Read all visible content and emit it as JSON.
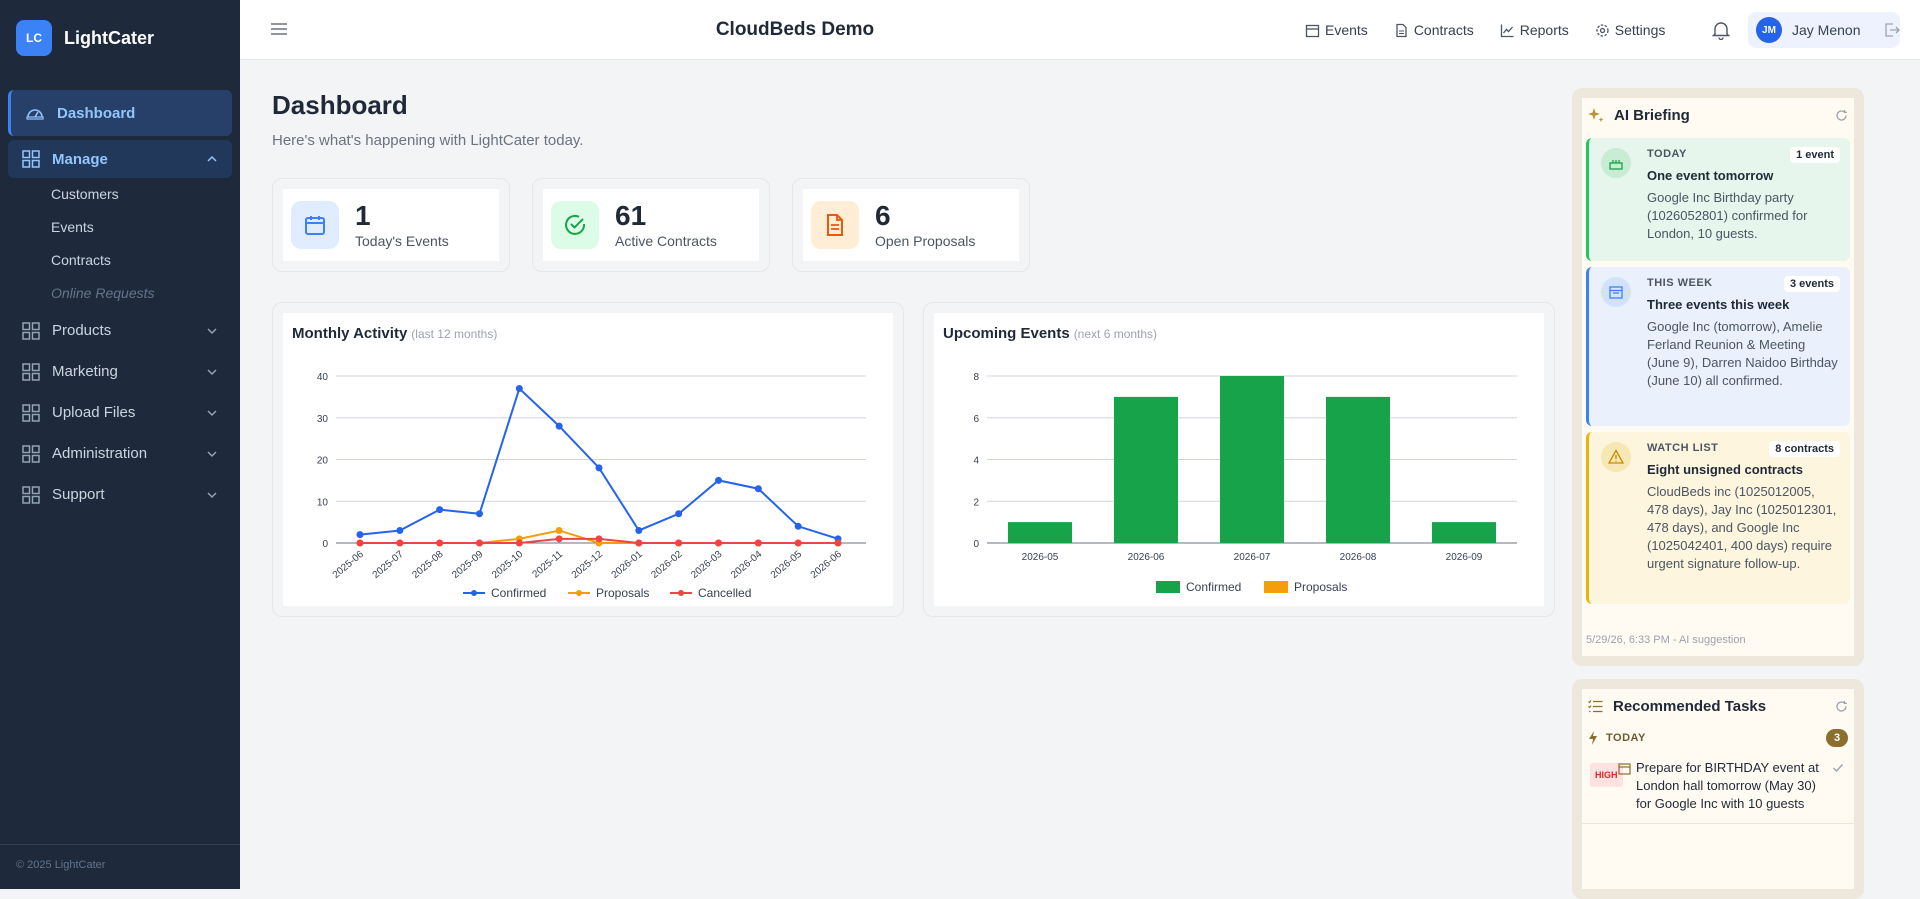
{
  "brand": {
    "logo": "LC",
    "name": "LightCater"
  },
  "sidebar": {
    "items": [
      {
        "label": "Dashboard",
        "icon": "dashboard-icon"
      },
      {
        "label": "Manage",
        "icon": "grid-icon"
      },
      {
        "label": "Products",
        "icon": "grid-icon"
      },
      {
        "label": "Marketing",
        "icon": "grid-icon"
      },
      {
        "label": "Upload Files",
        "icon": "grid-icon"
      },
      {
        "label": "Administration",
        "icon": "grid-icon"
      },
      {
        "label": "Support",
        "icon": "grid-icon"
      }
    ],
    "manage_sub": [
      "Customers",
      "Events",
      "Contracts",
      "Online Requests"
    ],
    "footer": "© 2025 LightCater"
  },
  "topbar": {
    "title": "CloudBeds Demo",
    "links": [
      "Events",
      "Contracts",
      "Reports",
      "Settings"
    ],
    "user": {
      "initials": "JM",
      "name": "Jay Menon"
    }
  },
  "main": {
    "title": "Dashboard",
    "subtitle": "Here's what's happening with LightCater today.",
    "stats": [
      {
        "value": "1",
        "label": "Today's Events",
        "color": "#3b82f6",
        "bg": "#e0ecff"
      },
      {
        "value": "61",
        "label": "Active Contracts",
        "color": "#16a34a",
        "bg": "#dcfce7"
      },
      {
        "value": "6",
        "label": "Open Proposals",
        "color": "#ea580c",
        "bg": "#ffedd5"
      }
    ],
    "monthly": {
      "title": "Monthly Activity",
      "subtitle": "(last 12 months)"
    },
    "upcoming": {
      "title": "Upcoming Events",
      "subtitle": "(next 6 months)"
    }
  },
  "chart_data": [
    {
      "type": "line",
      "title": "Monthly Activity",
      "x": [
        "2025-06",
        "2025-07",
        "2025-08",
        "2025-09",
        "2025-10",
        "2025-11",
        "2025-12",
        "2026-01",
        "2026-02",
        "2026-03",
        "2026-04",
        "2026-05",
        "2026-06"
      ],
      "ylim": [
        0,
        40
      ],
      "yticks": [
        0,
        10,
        20,
        30,
        40
      ],
      "grid": true,
      "legend": "bottom",
      "series": [
        {
          "name": "Confirmed",
          "color": "#2563eb",
          "values": [
            2,
            3,
            8,
            7,
            37,
            28,
            18,
            3,
            7,
            15,
            13,
            4,
            1
          ]
        },
        {
          "name": "Proposals",
          "color": "#f59e0b",
          "values": [
            0,
            0,
            0,
            0,
            1,
            3,
            0,
            0,
            0,
            0,
            0,
            0,
            0
          ]
        },
        {
          "name": "Cancelled",
          "color": "#ef4444",
          "values": [
            0,
            0,
            0,
            0,
            0,
            1,
            1,
            0,
            0,
            0,
            0,
            0,
            0
          ]
        }
      ]
    },
    {
      "type": "bar",
      "title": "Upcoming Events",
      "categories": [
        "2026-05",
        "2026-06",
        "2026-07",
        "2026-08",
        "2026-09"
      ],
      "ylim": [
        0,
        8
      ],
      "yticks": [
        0,
        2,
        4,
        6,
        8
      ],
      "grid": true,
      "legend": "bottom",
      "series": [
        {
          "name": "Confirmed",
          "color": "#16a34a",
          "values": [
            1,
            7,
            8,
            7,
            1
          ]
        },
        {
          "name": "Proposals",
          "color": "#f59e0b",
          "values": [
            0,
            0,
            0,
            0,
            0
          ]
        }
      ]
    }
  ],
  "briefing": {
    "title": "AI Briefing",
    "items": [
      {
        "tag": "TODAY",
        "count": "1 event",
        "heading": "One event tomorrow",
        "body": "Google Inc Birthday party (1026052801) confirmed for London, 10 guests.",
        "bg": "#e6f6ec",
        "border": "#22c55e"
      },
      {
        "tag": "THIS WEEK",
        "count": "3 events",
        "heading": "Three events this week",
        "body": "Google Inc (tomorrow), Amelie Ferland Reunion & Meeting (June 9), Darren Naidoo Birthday (June 10) all confirmed.",
        "bg": "#eaf1fd",
        "border": "#3b82f6"
      },
      {
        "tag": "WATCH LIST",
        "count": "8 contracts",
        "heading": "Eight unsigned contracts",
        "body": "CloudBeds inc (1025012005, 478 days), Jay Inc (1025012301, 478 days), and Google Inc (1025042401, 400 days) require urgent signature follow-up.",
        "bg": "#fdf5dd",
        "border": "#eab308"
      }
    ],
    "footnote": "5/29/26, 6:33 PM - AI suggestion"
  },
  "tasks": {
    "title": "Recommended Tasks",
    "group": "TODAY",
    "group_count": "3",
    "items": [
      {
        "priority": "HIGH",
        "text": "Prepare for BIRTHDAY event at London hall tomorrow (May 30) for Google Inc with 10 guests"
      }
    ]
  }
}
